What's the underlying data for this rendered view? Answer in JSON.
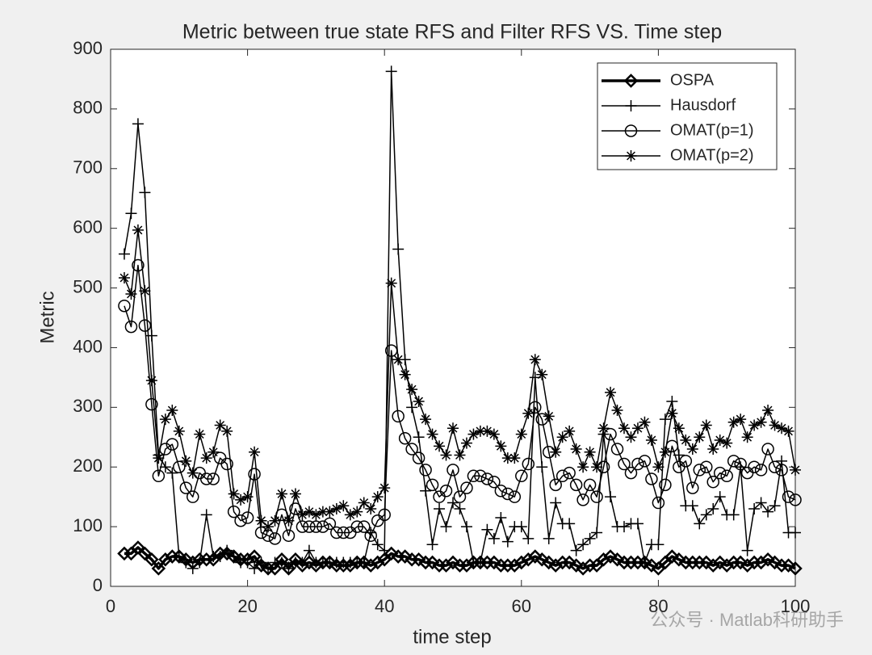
{
  "chart_data": {
    "type": "line",
    "title": "Metric between true state RFS and Filter RFS VS. Time step",
    "xlabel": "time step",
    "ylabel": "Metric",
    "watermark": "公众号 · Matlab科研助手",
    "xlim": [
      0,
      100
    ],
    "xticks": [
      0,
      20,
      40,
      60,
      80,
      100
    ],
    "ylim": [
      0,
      900
    ],
    "yticks": [
      0,
      100,
      200,
      300,
      400,
      500,
      600,
      700,
      800,
      900
    ],
    "grid": false,
    "legend": "top-right",
    "x": [
      2,
      3,
      4,
      5,
      6,
      7,
      8,
      9,
      10,
      11,
      12,
      13,
      14,
      15,
      16,
      17,
      18,
      19,
      20,
      21,
      22,
      23,
      24,
      25,
      26,
      27,
      28,
      29,
      30,
      31,
      32,
      33,
      34,
      35,
      36,
      37,
      38,
      39,
      40,
      41,
      42,
      43,
      44,
      45,
      46,
      47,
      48,
      49,
      50,
      51,
      52,
      53,
      54,
      55,
      56,
      57,
      58,
      59,
      60,
      61,
      62,
      63,
      64,
      65,
      66,
      67,
      68,
      69,
      70,
      71,
      72,
      73,
      74,
      75,
      76,
      77,
      78,
      79,
      80,
      81,
      82,
      83,
      84,
      85,
      86,
      87,
      88,
      89,
      90,
      91,
      92,
      93,
      94,
      95,
      96,
      97,
      98,
      99,
      100
    ],
    "series": [
      {
        "name": "OSPA",
        "color": "#000000",
        "marker": "diamond",
        "line_width": 3.5,
        "values": [
          55,
          55,
          65,
          55,
          45,
          30,
          45,
          50,
          50,
          45,
          40,
          45,
          45,
          45,
          55,
          55,
          50,
          45,
          45,
          50,
          35,
          30,
          30,
          45,
          30,
          45,
          35,
          40,
          35,
          40,
          40,
          35,
          35,
          35,
          40,
          40,
          35,
          40,
          45,
          55,
          50,
          50,
          45,
          45,
          40,
          40,
          35,
          35,
          40,
          35,
          35,
          40,
          40,
          40,
          40,
          35,
          35,
          35,
          40,
          45,
          50,
          45,
          40,
          35,
          40,
          40,
          35,
          30,
          35,
          35,
          45,
          50,
          45,
          40,
          40,
          40,
          40,
          35,
          30,
          40,
          50,
          45,
          40,
          40,
          40,
          40,
          35,
          40,
          35,
          40,
          40,
          35,
          40,
          40,
          45,
          40,
          35,
          35,
          30
        ]
      },
      {
        "name": "Hausdorf",
        "color": "#000000",
        "marker": "plus",
        "line_width": 1.5,
        "values": [
          557,
          625,
          775,
          660,
          420,
          220,
          200,
          190,
          50,
          40,
          30,
          40,
          120,
          50,
          50,
          60,
          50,
          40,
          40,
          30,
          40,
          30,
          40,
          40,
          30,
          40,
          40,
          60,
          40,
          40,
          40,
          40,
          40,
          40,
          40,
          40,
          90,
          70,
          60,
          863,
          565,
          380,
          300,
          250,
          160,
          70,
          130,
          100,
          140,
          130,
          100,
          40,
          40,
          95,
          80,
          115,
          75,
          100,
          100,
          80,
          350,
          200,
          80,
          140,
          105,
          105,
          60,
          70,
          80,
          90,
          255,
          150,
          100,
          100,
          105,
          105,
          40,
          70,
          70,
          280,
          310,
          220,
          135,
          135,
          105,
          120,
          130,
          150,
          120,
          120,
          200,
          60,
          130,
          140,
          125,
          135,
          210,
          90,
          90
        ]
      },
      {
        "name": "OMAT(p=1)",
        "color": "#000000",
        "marker": "circle",
        "line_width": 1.5,
        "values": [
          470,
          435,
          538,
          437,
          305,
          185,
          230,
          238,
          200,
          165,
          150,
          190,
          180,
          180,
          215,
          205,
          125,
          110,
          115,
          188,
          90,
          85,
          80,
          120,
          85,
          130,
          100,
          100,
          100,
          100,
          105,
          90,
          90,
          90,
          100,
          100,
          85,
          110,
          120,
          395,
          285,
          248,
          230,
          215,
          195,
          170,
          150,
          160,
          195,
          150,
          165,
          185,
          185,
          180,
          175,
          160,
          155,
          150,
          185,
          205,
          300,
          280,
          225,
          170,
          185,
          190,
          170,
          145,
          170,
          150,
          200,
          255,
          230,
          205,
          190,
          205,
          210,
          180,
          140,
          170,
          235,
          200,
          210,
          165,
          195,
          200,
          175,
          190,
          185,
          210,
          205,
          190,
          200,
          195,
          230,
          200,
          195,
          150,
          145
        ]
      },
      {
        "name": "OMAT(p=2)",
        "color": "#000000",
        "marker": "asterisk",
        "line_width": 1.5,
        "values": [
          517,
          490,
          597,
          495,
          345,
          215,
          280,
          295,
          260,
          210,
          190,
          255,
          215,
          225,
          270,
          260,
          155,
          145,
          150,
          225,
          110,
          100,
          110,
          155,
          110,
          155,
          120,
          125,
          120,
          125,
          125,
          130,
          135,
          120,
          125,
          140,
          130,
          150,
          165,
          508,
          380,
          355,
          330,
          310,
          280,
          255,
          235,
          220,
          265,
          220,
          240,
          255,
          260,
          260,
          255,
          235,
          215,
          215,
          255,
          290,
          380,
          355,
          285,
          225,
          250,
          260,
          230,
          200,
          225,
          200,
          265,
          325,
          295,
          265,
          250,
          265,
          275,
          245,
          200,
          225,
          290,
          265,
          245,
          230,
          250,
          270,
          230,
          245,
          240,
          275,
          280,
          250,
          270,
          275,
          295,
          270,
          265,
          260,
          195
        ]
      }
    ]
  }
}
